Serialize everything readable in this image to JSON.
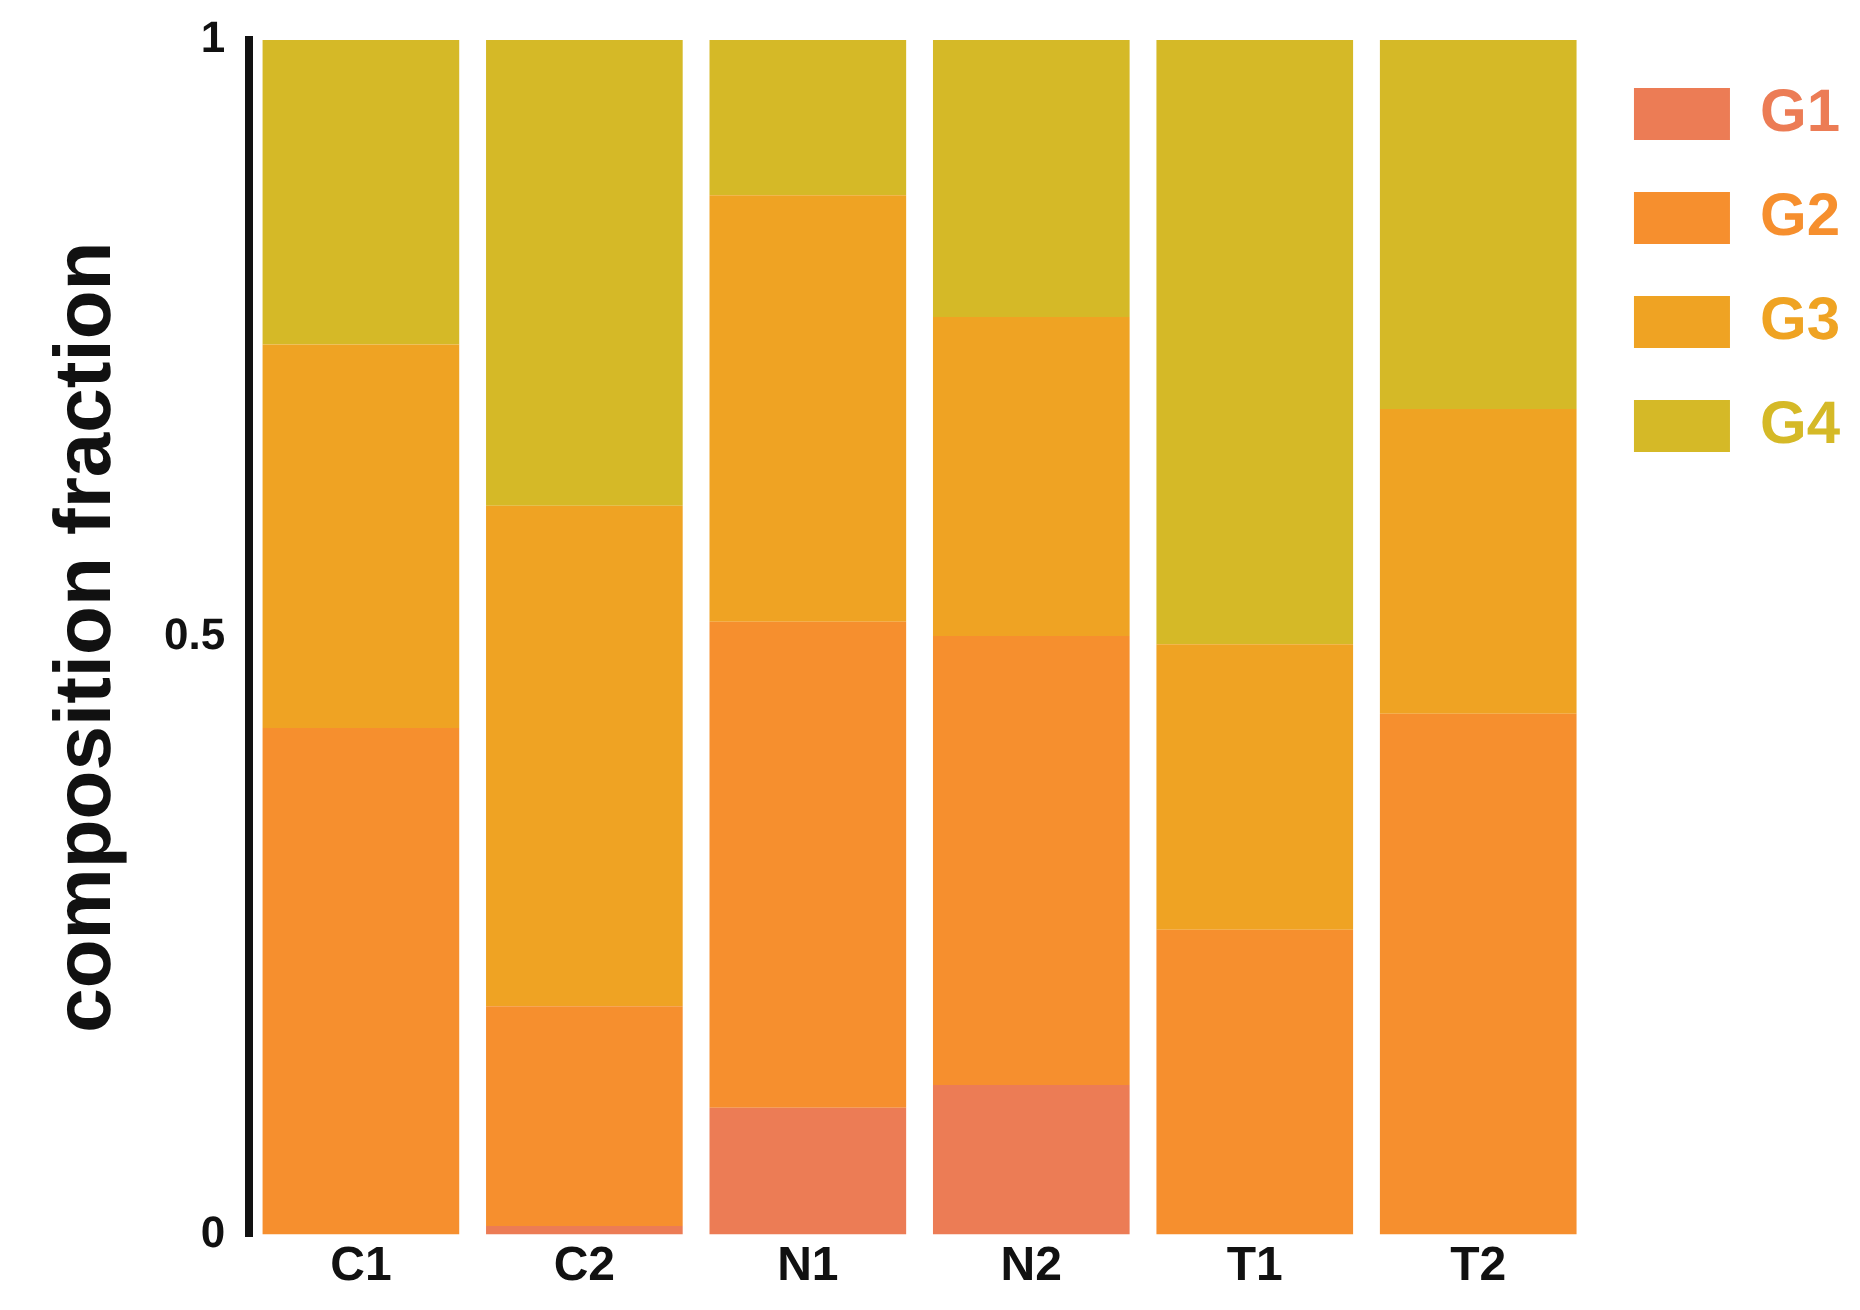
{
  "chart_data": {
    "type": "bar",
    "stacked": true,
    "ylabel": "composition fraction",
    "categories": [
      "C1",
      "C2",
      "N1",
      "N2",
      "T1",
      "T2"
    ],
    "series": [
      {
        "name": "G1",
        "color": "#ec7c55",
        "values": [
          0,
          0.007,
          0.106,
          0.125,
          0,
          0
        ]
      },
      {
        "name": "G2",
        "color": "#f68f2e",
        "values": [
          0.424,
          0.184,
          0.407,
          0.376,
          0.255,
          0.436
        ]
      },
      {
        "name": "G3",
        "color": "#efa323",
        "values": [
          0.321,
          0.419,
          0.357,
          0.267,
          0.239,
          0.255
        ]
      },
      {
        "name": "G4",
        "color": "#d5b927",
        "values": [
          0.255,
          0.39,
          0.13,
          0.232,
          0.506,
          0.309
        ]
      }
    ],
    "ylim": [
      0,
      1
    ],
    "yticks": [
      0,
      0.5,
      1
    ],
    "grid": false,
    "legend": "top right"
  }
}
